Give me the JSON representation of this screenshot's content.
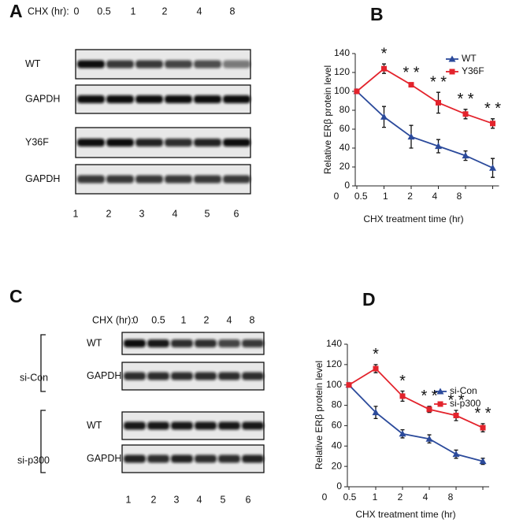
{
  "blots": [
    {
      "panel_label": "A",
      "time_label": "CHX (hr):",
      "times": [
        "0",
        "0.5",
        "1",
        "2",
        "4",
        "8"
      ],
      "rows": [
        "WT",
        "GAPDH",
        "Y36F",
        "GAPDH"
      ],
      "lanes": [
        "1",
        "2",
        "3",
        "4",
        "5",
        "6"
      ]
    },
    {
      "panel_label": "C",
      "time_label": "CHX (hr):",
      "times": [
        "0",
        "0.5",
        "1",
        "2",
        "4",
        "8"
      ],
      "groups": [
        "si-Con",
        "si-p300"
      ],
      "rows": [
        "WT",
        "GAPDH",
        "WT",
        "GAPDH"
      ],
      "lanes": [
        "1",
        "2",
        "3",
        "4",
        "5",
        "6"
      ]
    }
  ],
  "chart_data": [
    {
      "type": "line",
      "panel_label": "B",
      "x_label": "CHX treatment time (hr)",
      "y_label": "Relative ERβ protein level",
      "categories": [
        "0",
        "0.5",
        "1",
        "2",
        "4",
        "8"
      ],
      "ylim": [
        0,
        140
      ],
      "yticks": [
        0,
        20,
        40,
        60,
        80,
        100,
        120,
        140
      ],
      "legend": "upper right",
      "series": [
        {
          "name": "WT",
          "color": "#2b4a9b",
          "marker": "triangle",
          "values": [
            100,
            73,
            52,
            42,
            32,
            19
          ],
          "errors": [
            0,
            11,
            12,
            7,
            5,
            10
          ]
        },
        {
          "name": "Y36F",
          "color": "#e3232c",
          "marker": "square",
          "values": [
            100,
            124,
            107,
            88,
            76,
            66
          ],
          "errors": [
            0,
            5,
            2,
            11,
            5,
            5
          ]
        }
      ],
      "annotations": [
        {
          "text": "*",
          "x": "0.5"
        },
        {
          "text": "* *",
          "x": "1"
        },
        {
          "text": "* *",
          "x": "2"
        },
        {
          "text": "* *",
          "x": "4"
        },
        {
          "text": "* *",
          "x": "8"
        }
      ]
    },
    {
      "type": "line",
      "panel_label": "D",
      "x_label": "CHX treatment time (hr)",
      "y_label": "Relative ERβ protein level",
      "categories": [
        "0",
        "0.5",
        "1",
        "2",
        "4",
        "8"
      ],
      "ylim": [
        0,
        140
      ],
      "yticks": [
        0,
        20,
        40,
        60,
        80,
        100,
        120,
        140
      ],
      "legend": "upper right",
      "series": [
        {
          "name": "si-Con",
          "color": "#2b4a9b",
          "marker": "triangle",
          "values": [
            100,
            73,
            52,
            47,
            32,
            25
          ],
          "errors": [
            0,
            6,
            4,
            4,
            4,
            3
          ]
        },
        {
          "name": "si-p300",
          "color": "#e3232c",
          "marker": "square",
          "values": [
            100,
            116,
            89,
            76,
            70,
            58
          ],
          "errors": [
            0,
            4,
            5,
            3,
            5,
            4
          ]
        }
      ],
      "annotations": [
        {
          "text": "*",
          "x": "0.5"
        },
        {
          "text": "*",
          "x": "1"
        },
        {
          "text": "* *",
          "x": "2"
        },
        {
          "text": "* *",
          "x": "4"
        },
        {
          "text": "* *",
          "x": "8"
        }
      ]
    }
  ]
}
